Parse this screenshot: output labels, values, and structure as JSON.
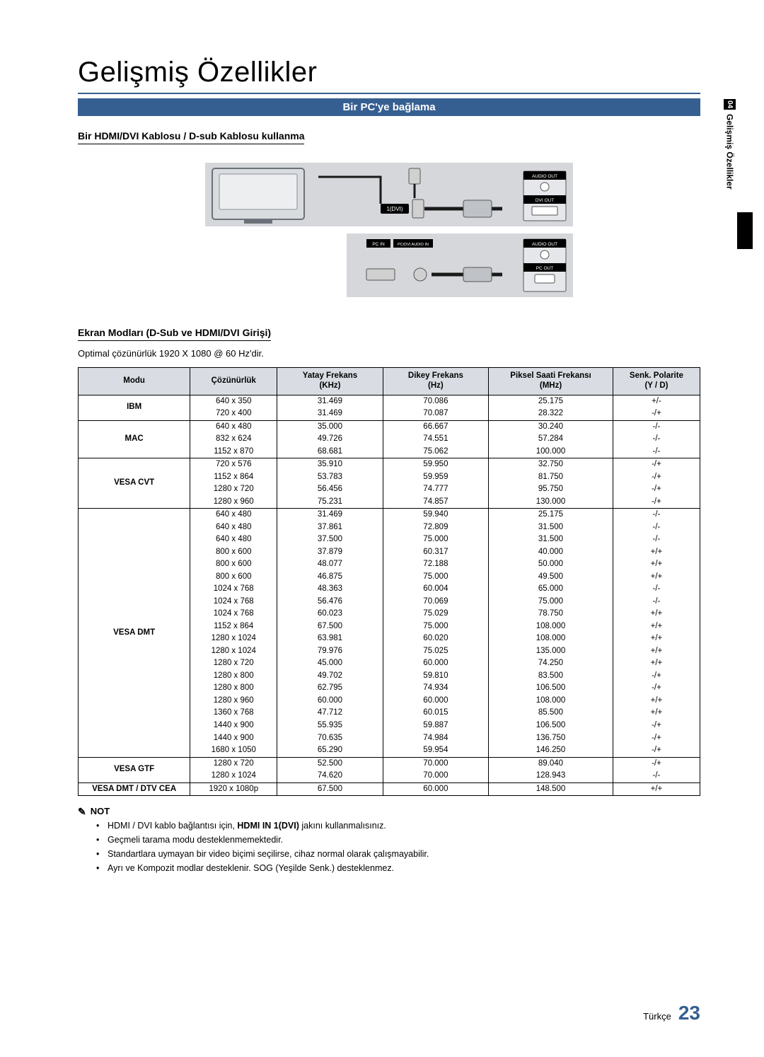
{
  "page": {
    "title": "Gelişmiş Özellikler",
    "banner": "Bir PC'ye bağlama",
    "cable_heading": "Bir HDMI/DVI Kablosu / D-sub Kablosu kullanma",
    "modes_heading": "Ekran Modları (D-Sub ve HDMI/DVI Girişi)",
    "optimal_text": "Optimal çözünürlük 1920 X 1080 @ 60 Hz'dir.",
    "side_tab_num": "04",
    "side_tab_label": "Gelişmiş Özellikler",
    "footer_lang": "Türkçe",
    "footer_page": "23"
  },
  "diagram": {
    "labels": {
      "hdmi_port": "1(DVI)",
      "audio_out": "AUDIO OUT",
      "dvi_out": "DVI OUT",
      "pc_in": "PC IN",
      "pcdvi_audio": "PC/DVI AUDIO IN",
      "pc_out": "PC OUT"
    },
    "colors": {
      "bg": "#9aa0a8",
      "frame": "#5c6068",
      "label_bg": "#000000",
      "label_text": "#ffffff"
    }
  },
  "table": {
    "headers": {
      "mode": "Modu",
      "res": "Çözünürlük",
      "hkhz": "Yatay Frekans",
      "hkhz_u": "(KHz)",
      "vhz": "Dikey Frekans",
      "vhz_u": "(Hz)",
      "pmhz": "Piksel Saati Frekansı",
      "pmhz_u": "(MHz)",
      "pol": "Senk. Polarite",
      "pol_u": "(Y / D)"
    },
    "col_widths_pct": [
      18,
      14,
      17,
      17,
      20,
      14
    ],
    "groups": [
      {
        "mode": "IBM",
        "rows": [
          [
            "640 x 350",
            "31.469",
            "70.086",
            "25.175",
            "+/-"
          ],
          [
            "720 x 400",
            "31.469",
            "70.087",
            "28.322",
            "-/+"
          ]
        ]
      },
      {
        "mode": "MAC",
        "rows": [
          [
            "640 x 480",
            "35.000",
            "66.667",
            "30.240",
            "-/-"
          ],
          [
            "832 x 624",
            "49.726",
            "74.551",
            "57.284",
            "-/-"
          ],
          [
            "1152 x 870",
            "68.681",
            "75.062",
            "100.000",
            "-/-"
          ]
        ]
      },
      {
        "mode": "VESA CVT",
        "rows": [
          [
            "720 x 576",
            "35.910",
            "59.950",
            "32.750",
            "-/+"
          ],
          [
            "1152 x 864",
            "53.783",
            "59.959",
            "81.750",
            "-/+"
          ],
          [
            "1280 x 720",
            "56.456",
            "74.777",
            "95.750",
            "-/+"
          ],
          [
            "1280 x 960",
            "75.231",
            "74.857",
            "130.000",
            "-/+"
          ]
        ]
      },
      {
        "mode": "VESA DMT",
        "rows": [
          [
            "640 x 480",
            "31.469",
            "59.940",
            "25.175",
            "-/-"
          ],
          [
            "640 x 480",
            "37.861",
            "72.809",
            "31.500",
            "-/-"
          ],
          [
            "640 x 480",
            "37.500",
            "75.000",
            "31.500",
            "-/-"
          ],
          [
            "800 x 600",
            "37.879",
            "60.317",
            "40.000",
            "+/+"
          ],
          [
            "800 x 600",
            "48.077",
            "72.188",
            "50.000",
            "+/+"
          ],
          [
            "800 x 600",
            "46.875",
            "75.000",
            "49.500",
            "+/+"
          ],
          [
            "1024 x 768",
            "48.363",
            "60.004",
            "65.000",
            "-/-"
          ],
          [
            "1024 x 768",
            "56.476",
            "70.069",
            "75.000",
            "-/-"
          ],
          [
            "1024 x 768",
            "60.023",
            "75.029",
            "78.750",
            "+/+"
          ],
          [
            "1152 x 864",
            "67.500",
            "75.000",
            "108.000",
            "+/+"
          ],
          [
            "1280 x 1024",
            "63.981",
            "60.020",
            "108.000",
            "+/+"
          ],
          [
            "1280 x 1024",
            "79.976",
            "75.025",
            "135.000",
            "+/+"
          ],
          [
            "1280 x 720",
            "45.000",
            "60.000",
            "74.250",
            "+/+"
          ],
          [
            "1280 x 800",
            "49.702",
            "59.810",
            "83.500",
            "-/+"
          ],
          [
            "1280 x 800",
            "62.795",
            "74.934",
            "106.500",
            "-/+"
          ],
          [
            "1280 x 960",
            "60.000",
            "60.000",
            "108.000",
            "+/+"
          ],
          [
            "1360 x 768",
            "47.712",
            "60.015",
            "85.500",
            "+/+"
          ],
          [
            "1440 x 900",
            "55.935",
            "59.887",
            "106.500",
            "-/+"
          ],
          [
            "1440 x 900",
            "70.635",
            "74.984",
            "136.750",
            "-/+"
          ],
          [
            "1680 x 1050",
            "65.290",
            "59.954",
            "146.250",
            "-/+"
          ]
        ]
      },
      {
        "mode": "VESA GTF",
        "rows": [
          [
            "1280 x 720",
            "52.500",
            "70.000",
            "89.040",
            "-/+"
          ],
          [
            "1280 x 1024",
            "74.620",
            "70.000",
            "128.943",
            "-/-"
          ]
        ]
      },
      {
        "mode": "VESA DMT / DTV CEA",
        "rows": [
          [
            "1920 x 1080p",
            "67.500",
            "60.000",
            "148.500",
            "+/+"
          ]
        ]
      }
    ],
    "header_bg": "#d9dde3",
    "border_color": "#000000"
  },
  "notes": {
    "label": "NOT",
    "items": [
      {
        "pre": "HDMI / DVI kablo bağlantısı için, ",
        "bold": "HDMI IN 1(DVI)",
        "post": " jakını kullanmalısınız."
      },
      {
        "pre": "Geçmeli tarama modu desteklenmemektedir.",
        "bold": "",
        "post": ""
      },
      {
        "pre": "Standartlara uymayan bir video biçimi seçilirse, cihaz normal olarak çalışmayabilir.",
        "bold": "",
        "post": ""
      },
      {
        "pre": "Ayrı ve Kompozit modlar desteklenir. SOG (Yeşilde Senk.) desteklenmez.",
        "bold": "",
        "post": ""
      }
    ]
  }
}
